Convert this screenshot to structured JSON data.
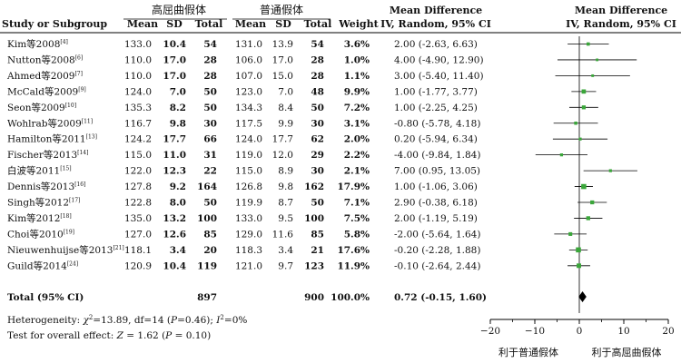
{
  "headers": {
    "group1": "高屈曲假体",
    "group2": "普通假体",
    "md_title": "Mean Difference",
    "md_method": "IV, Random, 95% CI",
    "plot_title": "Mean Difference",
    "plot_method": "IV, Random, 95% CI",
    "study": "Study or Subgroup",
    "mean1": "Mean",
    "sd1": "SD",
    "total1": "Total",
    "mean2": "Mean",
    "sd2": "SD",
    "total2": "Total",
    "weight": "Weight"
  },
  "studies": [
    {
      "name": "Kim等2008",
      "ref": "[4]",
      "m1": "133.0",
      "sd1": "10.4",
      "n1": "54",
      "m2": "131.0",
      "sd2": "13.9",
      "n2": "54",
      "weight": "3.6%",
      "ci": "2.00 (-2.63, 6.63)"
    },
    {
      "name": "Nutton等2008",
      "ref": "[6]",
      "m1": "110.0",
      "sd1": "17.0",
      "n1": "28",
      "m2": "106.0",
      "sd2": "17.0",
      "n2": "28",
      "weight": "1.0%",
      "ci": "4.00 (-4.90, 12.90)"
    },
    {
      "name": "Ahmed等2009",
      "ref": "[7]",
      "m1": "110.0",
      "sd1": "17.0",
      "n1": "28",
      "m2": "107.0",
      "sd2": "15.0",
      "n2": "28",
      "weight": "1.1%",
      "ci": "3.00 (-5.40, 11.40)"
    },
    {
      "name": "McCald等2009",
      "ref": "[9]",
      "m1": "124.0",
      "sd1": "7.0",
      "n1": "50",
      "m2": "123.0",
      "sd2": "7.0",
      "n2": "48",
      "weight": "9.9%",
      "ci": "1.00 (-1.77, 3.77)"
    },
    {
      "name": "Seon等2009",
      "ref": "[10]",
      "m1": "135.3",
      "sd1": "8.2",
      "n1": "50",
      "m2": "134.3",
      "sd2": "8.4",
      "n2": "50",
      "weight": "7.2%",
      "ci": "1.00 (-2.25, 4.25)"
    },
    {
      "name": "Wohlrab等2009",
      "ref": "[11]",
      "m1": "116.7",
      "sd1": "9.8",
      "n1": "30",
      "m2": "117.5",
      "sd2": "9.9",
      "n2": "30",
      "weight": "3.1%",
      "ci": "-0.80 (-5.78, 4.18)"
    },
    {
      "name": "Hamilton等2011",
      "ref": "[13]",
      "m1": "124.2",
      "sd1": "17.7",
      "n1": "66",
      "m2": "124.0",
      "sd2": "17.7",
      "n2": "62",
      "weight": "2.0%",
      "ci": "0.20 (-5.94, 6.34)"
    },
    {
      "name": "Fischer等2013",
      "ref": "[14]",
      "m1": "115.0",
      "sd1": "11.0",
      "n1": "31",
      "m2": "119.0",
      "sd2": "12.0",
      "n2": "29",
      "weight": "2.2%",
      "ci": "-4.00 (-9.84, 1.84)"
    },
    {
      "name": "白波等2011",
      "ref": "[15]",
      "m1": "122.0",
      "sd1": "12.3",
      "n1": "22",
      "m2": "115.0",
      "sd2": "8.9",
      "n2": "30",
      "weight": "2.1%",
      "ci": "7.00 (0.95, 13.05)"
    },
    {
      "name": "Dennis等2013",
      "ref": "[16]",
      "m1": "127.8",
      "sd1": "9.2",
      "n1": "164",
      "m2": "126.8",
      "sd2": "9.8",
      "n2": "162",
      "weight": "17.9%",
      "ci": "1.00 (-1.06, 3.06)"
    },
    {
      "name": "Singh等2012",
      "ref": "[17]",
      "m1": "122.8",
      "sd1": "8.0",
      "n1": "50",
      "m2": "119.9",
      "sd2": "8.7",
      "n2": "50",
      "weight": "7.1%",
      "ci": "2.90 (-0.38, 6.18)"
    },
    {
      "name": "Kim等2012",
      "ref": "[18]",
      "m1": "135.0",
      "sd1": "13.2",
      "n1": "100",
      "m2": "133.0",
      "sd2": "9.5",
      "n2": "100",
      "weight": "7.5%",
      "ci": "2.00 (-1.19, 5.19)"
    },
    {
      "name": "Choi等2010",
      "ref": "[19]",
      "m1": "127.0",
      "sd1": "12.6",
      "n1": "85",
      "m2": "129.0",
      "sd2": "11.6",
      "n2": "85",
      "weight": "5.8%",
      "ci": "-2.00 (-5.64, 1.64)"
    },
    {
      "name": "Nieuwenhuijse等2013",
      "ref": "[21]",
      "m1": "118.1",
      "sd1": "3.4",
      "n1": "20",
      "m2": "118.3",
      "sd2": "3.4",
      "n2": "21",
      "weight": "17.6%",
      "ci": "-0.20 (-2.28, 1.88)"
    },
    {
      "name": "Guild等2014",
      "ref": "[24]",
      "m1": "120.9",
      "sd1": "10.4",
      "n1": "119",
      "m2": "121.0",
      "sd2": "9.7",
      "n2": "123",
      "weight": "11.9%",
      "ci": "-0.10 (-2.64, 2.44)"
    }
  ],
  "total": {
    "label": "Total (95% CI)",
    "n1": "897",
    "n2": "900",
    "weight": "100.0%",
    "ci": "0.72 (-0.15, 1.60)"
  },
  "heterogeneity": {
    "lead": "Heterogeneity: ",
    "chi": "χ",
    "chi_val": "=13.89, df=14 (",
    "p": "P",
    "p_val": "=0.46); ",
    "i": "I",
    "i_val": "=0%"
  },
  "overall_effect": {
    "lead": "Test for overall effect: ",
    "z": "Z",
    "z_val": " = 1.62 (",
    "p": "P",
    "p_val": " = 0.10)"
  },
  "axis": {
    "ticks": [
      "−20",
      "−10",
      "0",
      "10",
      "20"
    ],
    "left_label": "利于普通假体",
    "right_label": "利于高屈曲假体"
  },
  "chart_data": {
    "type": "forest",
    "xlim": [
      -20,
      20
    ],
    "xticks": [
      -20,
      -10,
      0,
      10,
      20
    ],
    "studies": [
      {
        "name": "Kim等2008",
        "md": 2.0,
        "lo": -2.63,
        "hi": 6.63,
        "weight": 3.6
      },
      {
        "name": "Nutton等2008",
        "md": 4.0,
        "lo": -4.9,
        "hi": 12.9,
        "weight": 1.0
      },
      {
        "name": "Ahmed等2009",
        "md": 3.0,
        "lo": -5.4,
        "hi": 11.4,
        "weight": 1.1
      },
      {
        "name": "McCald等2009",
        "md": 1.0,
        "lo": -1.77,
        "hi": 3.77,
        "weight": 9.9
      },
      {
        "name": "Seon等2009",
        "md": 1.0,
        "lo": -2.25,
        "hi": 4.25,
        "weight": 7.2
      },
      {
        "name": "Wohlrab等2009",
        "md": -0.8,
        "lo": -5.78,
        "hi": 4.18,
        "weight": 3.1
      },
      {
        "name": "Hamilton等2011",
        "md": 0.2,
        "lo": -5.94,
        "hi": 6.34,
        "weight": 2.0
      },
      {
        "name": "Fischer等2013",
        "md": -4.0,
        "lo": -9.84,
        "hi": 1.84,
        "weight": 2.2
      },
      {
        "name": "白波等2011",
        "md": 7.0,
        "lo": 0.95,
        "hi": 13.05,
        "weight": 2.1
      },
      {
        "name": "Dennis等2013",
        "md": 1.0,
        "lo": -1.06,
        "hi": 3.06,
        "weight": 17.9
      },
      {
        "name": "Singh等2012",
        "md": 2.9,
        "lo": -0.38,
        "hi": 6.18,
        "weight": 7.1
      },
      {
        "name": "Kim等2012",
        "md": 2.0,
        "lo": -1.19,
        "hi": 5.19,
        "weight": 7.5
      },
      {
        "name": "Choi等2010",
        "md": -2.0,
        "lo": -5.64,
        "hi": 1.64,
        "weight": 5.8
      },
      {
        "name": "Nieuwenhuijse等2013",
        "md": -0.2,
        "lo": -2.28,
        "hi": 1.88,
        "weight": 17.6
      },
      {
        "name": "Guild等2014",
        "md": -0.1,
        "lo": -2.64,
        "hi": 2.44,
        "weight": 11.9
      }
    ],
    "pooled": {
      "md": 0.72,
      "lo": -0.15,
      "hi": 1.6
    },
    "colors": {
      "marker": "#3aa63a",
      "line": "#000000",
      "diamond": "#000000"
    }
  }
}
